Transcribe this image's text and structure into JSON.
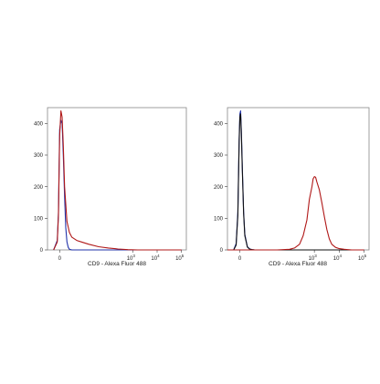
{
  "chart_data": [
    {
      "type": "line",
      "xlabel": "CD9 - Alexa Fluor 488",
      "ylabel": "",
      "xlim": [
        -0.5,
        5.2
      ],
      "ylim": [
        0,
        450
      ],
      "x_ticks": [
        {
          "value": 0,
          "label": "0",
          "sup": ""
        },
        {
          "value": 3,
          "label": "10",
          "sup": "3"
        },
        {
          "value": 4,
          "label": "10",
          "sup": "4"
        },
        {
          "value": 5,
          "label": "10",
          "sup": "5"
        }
      ],
      "y_ticks": [
        0,
        100,
        200,
        300,
        400
      ],
      "grid": false,
      "series": [
        {
          "color": "#2233aa",
          "x": [
            -0.25,
            -0.1,
            -0.05,
            0,
            0.05,
            0.1,
            0.15,
            0.2,
            0.25,
            0.3,
            0.35,
            0.4,
            0.5,
            5.0
          ],
          "y": [
            0,
            30,
            120,
            380,
            410,
            400,
            300,
            170,
            70,
            25,
            8,
            2,
            0,
            0
          ]
        },
        {
          "color": "#b01818",
          "x": [
            -0.25,
            -0.1,
            -0.05,
            0,
            0.05,
            0.1,
            0.15,
            0.2,
            0.3,
            0.4,
            0.5,
            0.7,
            0.9,
            1.2,
            1.6,
            2.0,
            2.4,
            2.8,
            3.2,
            5.0
          ],
          "y": [
            0,
            25,
            110,
            360,
            440,
            420,
            330,
            200,
            90,
            55,
            40,
            30,
            25,
            18,
            10,
            6,
            3,
            1,
            0,
            0
          ]
        }
      ]
    },
    {
      "type": "line",
      "xlabel": "CD9 - Alexa Fluor 488",
      "ylabel": "",
      "xlim": [
        -0.5,
        5.2
      ],
      "ylim": [
        0,
        450
      ],
      "x_ticks": [
        {
          "value": 0,
          "label": "0",
          "sup": ""
        },
        {
          "value": 3,
          "label": "10",
          "sup": "3"
        },
        {
          "value": 4,
          "label": "10",
          "sup": "4"
        },
        {
          "value": 5,
          "label": "10",
          "sup": "5"
        }
      ],
      "y_ticks": [
        0,
        100,
        200,
        300,
        400
      ],
      "grid": false,
      "series": [
        {
          "color": "#2233aa",
          "x": [
            -0.25,
            -0.15,
            -0.08,
            -0.03,
            0,
            0.03,
            0.06,
            0.1,
            0.15,
            0.2,
            0.3,
            0.4,
            0.5,
            0.6,
            5.0
          ],
          "y": [
            0,
            20,
            120,
            350,
            430,
            440,
            380,
            260,
            120,
            50,
            10,
            3,
            1,
            0,
            0
          ]
        },
        {
          "color": "#111111",
          "x": [
            -0.25,
            -0.15,
            -0.08,
            -0.03,
            0,
            0.03,
            0.06,
            0.1,
            0.15,
            0.2,
            0.3,
            0.4,
            0.5,
            0.6,
            5.0
          ],
          "y": [
            0,
            15,
            110,
            340,
            420,
            430,
            370,
            250,
            115,
            45,
            9,
            2,
            1,
            0,
            0
          ]
        },
        {
          "color": "#b01818",
          "x": [
            -0.5,
            1.5,
            2.0,
            2.2,
            2.4,
            2.55,
            2.7,
            2.8,
            2.9,
            2.95,
            3.0,
            3.05,
            3.1,
            3.2,
            3.3,
            3.4,
            3.5,
            3.6,
            3.7,
            3.85,
            4.0,
            4.2,
            4.5,
            5.0
          ],
          "y": [
            0,
            0,
            2,
            6,
            18,
            45,
            95,
            160,
            200,
            225,
            232,
            230,
            215,
            190,
            150,
            105,
            65,
            35,
            18,
            8,
            4,
            2,
            0,
            0
          ]
        }
      ]
    }
  ]
}
